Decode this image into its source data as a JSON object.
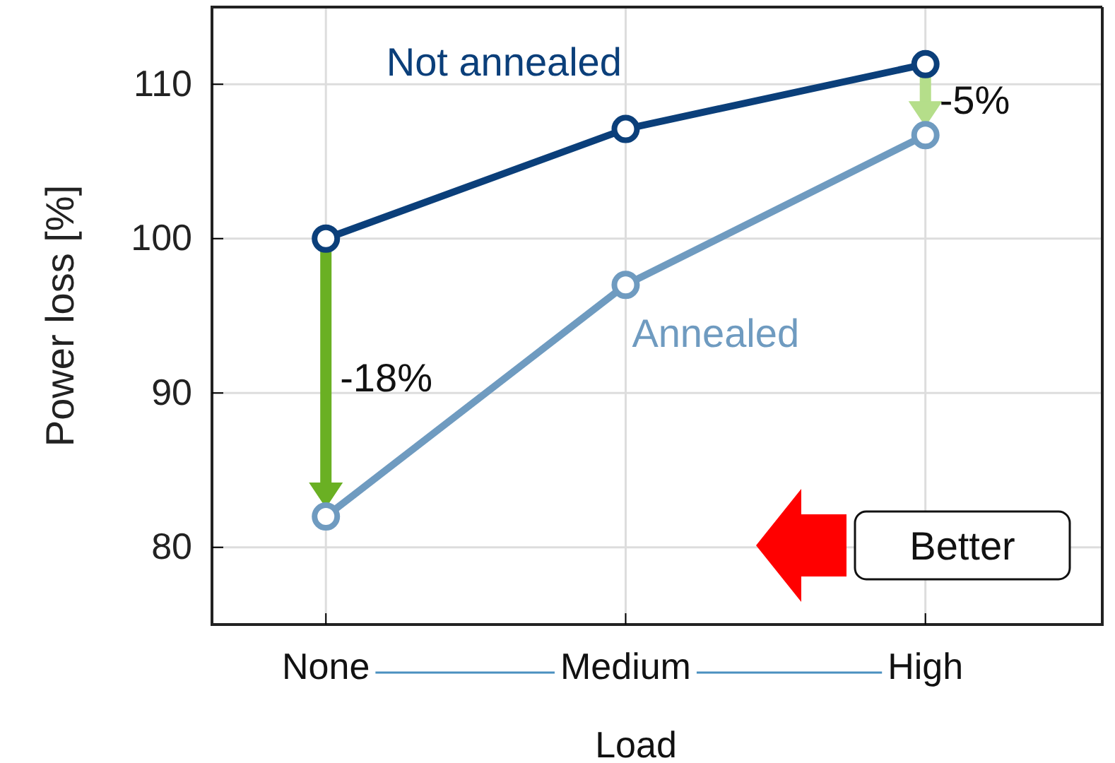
{
  "chart_data": {
    "type": "line",
    "xlabel": "Load",
    "ylabel": "Power loss [%]",
    "categories": [
      "None",
      "Medium",
      "High"
    ],
    "series": [
      {
        "name": "Not annealed",
        "color": "#0b3f7a",
        "values": [
          100,
          107.1,
          111.3
        ]
      },
      {
        "name": "Annealed",
        "color": "#6f9bc0",
        "values": [
          82,
          97,
          106.7
        ]
      }
    ],
    "ylim": [
      75,
      115
    ],
    "yticks": [
      80,
      90,
      100,
      110
    ],
    "grid": true,
    "marker": "circle",
    "line_style": "solid",
    "annotations": [
      "-18%",
      "-5%",
      "Better"
    ]
  }
}
